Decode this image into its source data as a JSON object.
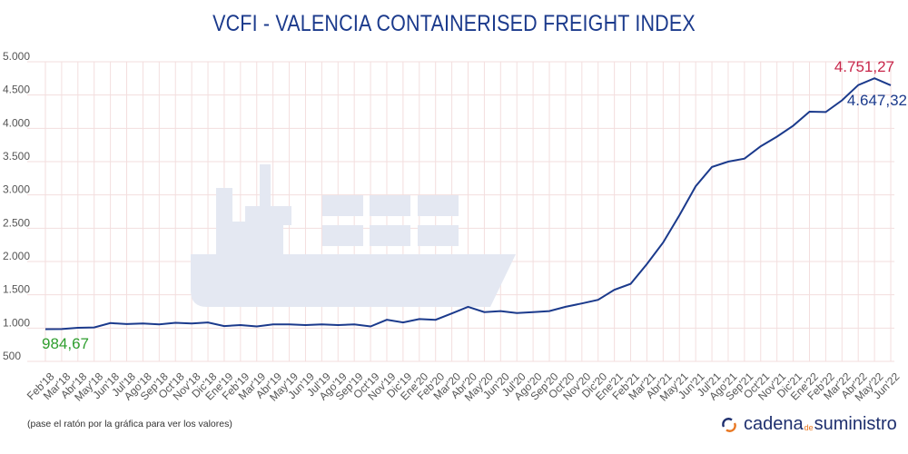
{
  "chart_data": {
    "type": "line",
    "title": "VCFI - VALENCIA CONTAINERISED FREIGHT INDEX",
    "xlabel": "",
    "ylabel": "",
    "ylim": [
      500,
      5000
    ],
    "yticks": [
      "5.000",
      "4.500",
      "4.000",
      "3.500",
      "3.000",
      "2.500",
      "2.000",
      "1.500",
      "1.000",
      "500"
    ],
    "ytick_values": [
      5000,
      4500,
      4000,
      3500,
      3000,
      2500,
      2000,
      1500,
      1000,
      500
    ],
    "grid": true,
    "categories": [
      "Feb'18",
      "Mar'18",
      "Abr'18",
      "May'18",
      "Jun'18",
      "Jul'18",
      "Ago'18",
      "Sep'18",
      "Oct'18",
      "Nov'18",
      "Dic'18",
      "Ene'19",
      "Feb'19",
      "Mar'19",
      "Abr'19",
      "May'19",
      "Jun'19",
      "Jul'19",
      "Ago'19",
      "Sep'19",
      "Oct'19",
      "Nov'19",
      "Dic'19",
      "Ene'20",
      "Feb'20",
      "Mar'20",
      "Abr'20",
      "May'20",
      "Jun'20",
      "Jul'20",
      "Ago'20",
      "Sep'20",
      "Oct'20",
      "Nov'20",
      "Dic'20",
      "Ene'21",
      "Feb'21",
      "Mar'21",
      "Abr'21",
      "May'21",
      "Jun'21",
      "Jul'21",
      "Ago'21",
      "Sep'21",
      "Oct'21",
      "Nov'21",
      "Dic'21",
      "Ene'22",
      "Feb'22",
      "Mar'22",
      "Abr'22",
      "May'22",
      "Jun'22"
    ],
    "series": [
      {
        "values": [
          984.67,
          985,
          1005,
          1010,
          1075,
          1060,
          1070,
          1055,
          1080,
          1070,
          1085,
          1030,
          1045,
          1025,
          1055,
          1055,
          1045,
          1055,
          1045,
          1055,
          1025,
          1125,
          1085,
          1135,
          1125,
          1220,
          1320,
          1240,
          1255,
          1225,
          1240,
          1255,
          1320,
          1370,
          1425,
          1575,
          1665,
          1960,
          2285,
          2695,
          3130,
          3420,
          3500,
          3545,
          3730,
          3875,
          4040,
          4250,
          4245,
          4420,
          4650,
          4751.27,
          4647.32
        ],
        "color": "#1b3a8c"
      }
    ],
    "annotations": {
      "first": {
        "label": "984,67",
        "color": "#2e9e2e"
      },
      "max": {
        "label": "4.751,27",
        "color": "#c8264a"
      },
      "last": {
        "label": "4.647,32",
        "color": "#1b3a8c"
      }
    }
  },
  "footer": {
    "note": "(pase el ratón por la gráfica para ver los valores)",
    "logo": {
      "part1": "cadena",
      "part2": "de",
      "part3": "suministro"
    }
  },
  "colors": {
    "title": "#1b3a8c",
    "grid": "#f3dede",
    "watermark": "#e4e8f2",
    "logo_orange": "#e87722",
    "logo_blue": "#1e2f6e"
  }
}
